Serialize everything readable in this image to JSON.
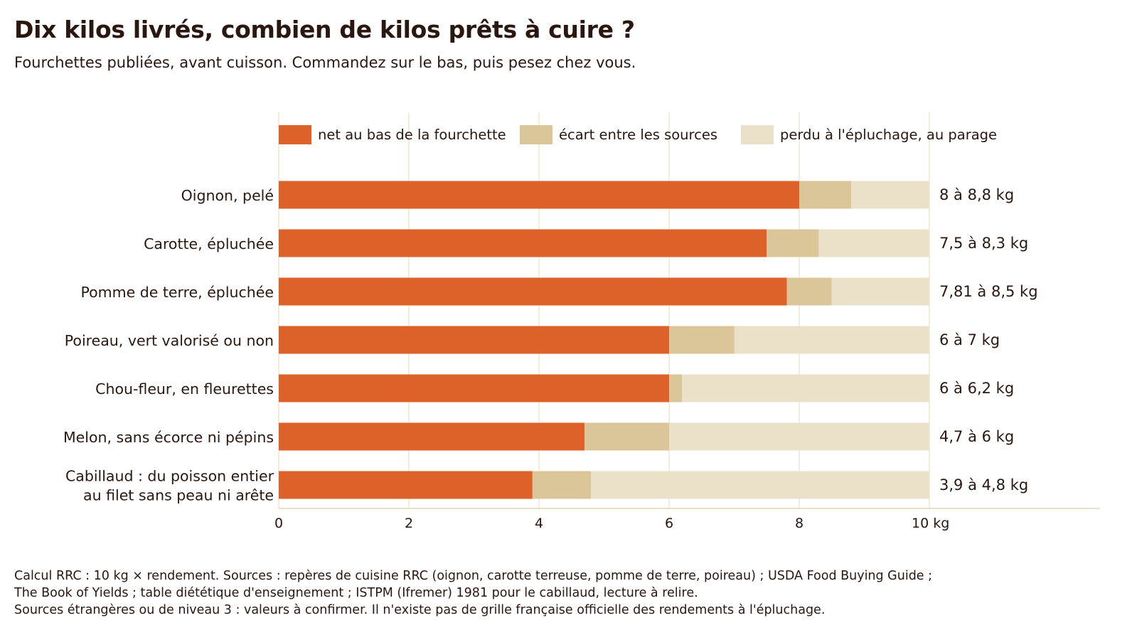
{
  "title": "Dix kilos livrés, combien de kilos prêts à cuire ?",
  "subtitle": "Fourchettes publiées, avant cuisson. Commandez sur le bas, puis pesez chez vous.",
  "footnote": [
    "Calcul RRC : 10 kg × rendement. Sources : repères de cuisine RRC (oignon, carotte terreuse, pomme de terre, poireau) ; USDA Food Buying Guide ;",
    "The Book of Yields ; table diététique d'enseignement ; ISTPM (Ifremer) 1981 pour le cabillaud, lecture à relire.",
    "Sources étrangères ou de niveau 3 : valeurs à confirmer. Il n'existe pas de grille française officielle des rendements à l'épluchage."
  ],
  "chart_data": {
    "type": "bar",
    "orientation": "horizontal",
    "stacked": true,
    "categories": [
      [
        "Oignon, pelé"
      ],
      [
        "Carotte, épluchée"
      ],
      [
        "Pomme de terre, épluchée"
      ],
      [
        "Poireau, vert valorisé ou non"
      ],
      [
        "Chou-fleur, en fleurettes"
      ],
      [
        "Melon, sans écorce ni pépins"
      ],
      [
        "Cabillaud : du poisson entier",
        "au filet sans peau ni arête"
      ]
    ],
    "series": [
      {
        "name": "net au bas de la fourchette",
        "color": "#dd6229",
        "values": [
          8,
          7.5,
          7.81,
          6,
          6,
          4.7,
          3.9
        ]
      },
      {
        "name": "écart entre les sources",
        "color": "#dbc699",
        "values": [
          0.8,
          0.8,
          0.69,
          1,
          0.2,
          1.3,
          0.9
        ]
      },
      {
        "name": "perdu à l'épluchage, au parage",
        "color": "#ebe1c9",
        "values": [
          1.2,
          1.7,
          1.5,
          3,
          3.8,
          4,
          5.2
        ]
      }
    ],
    "range_labels": [
      "8 à 8,8 kg",
      "7,5 à 8,3 kg",
      "7,81 à 8,5 kg",
      "6 à 7 kg",
      "6 à 6,2 kg",
      "4,7 à 6 kg",
      "3,9 à 4,8 kg"
    ],
    "xlim": [
      0,
      10
    ],
    "x_ticks": [
      0,
      2,
      4,
      6,
      8,
      10
    ],
    "x_tick_labels": [
      "0",
      "2",
      "4",
      "6",
      "8",
      "10 kg"
    ],
    "grid": true,
    "legend_position": "top"
  }
}
